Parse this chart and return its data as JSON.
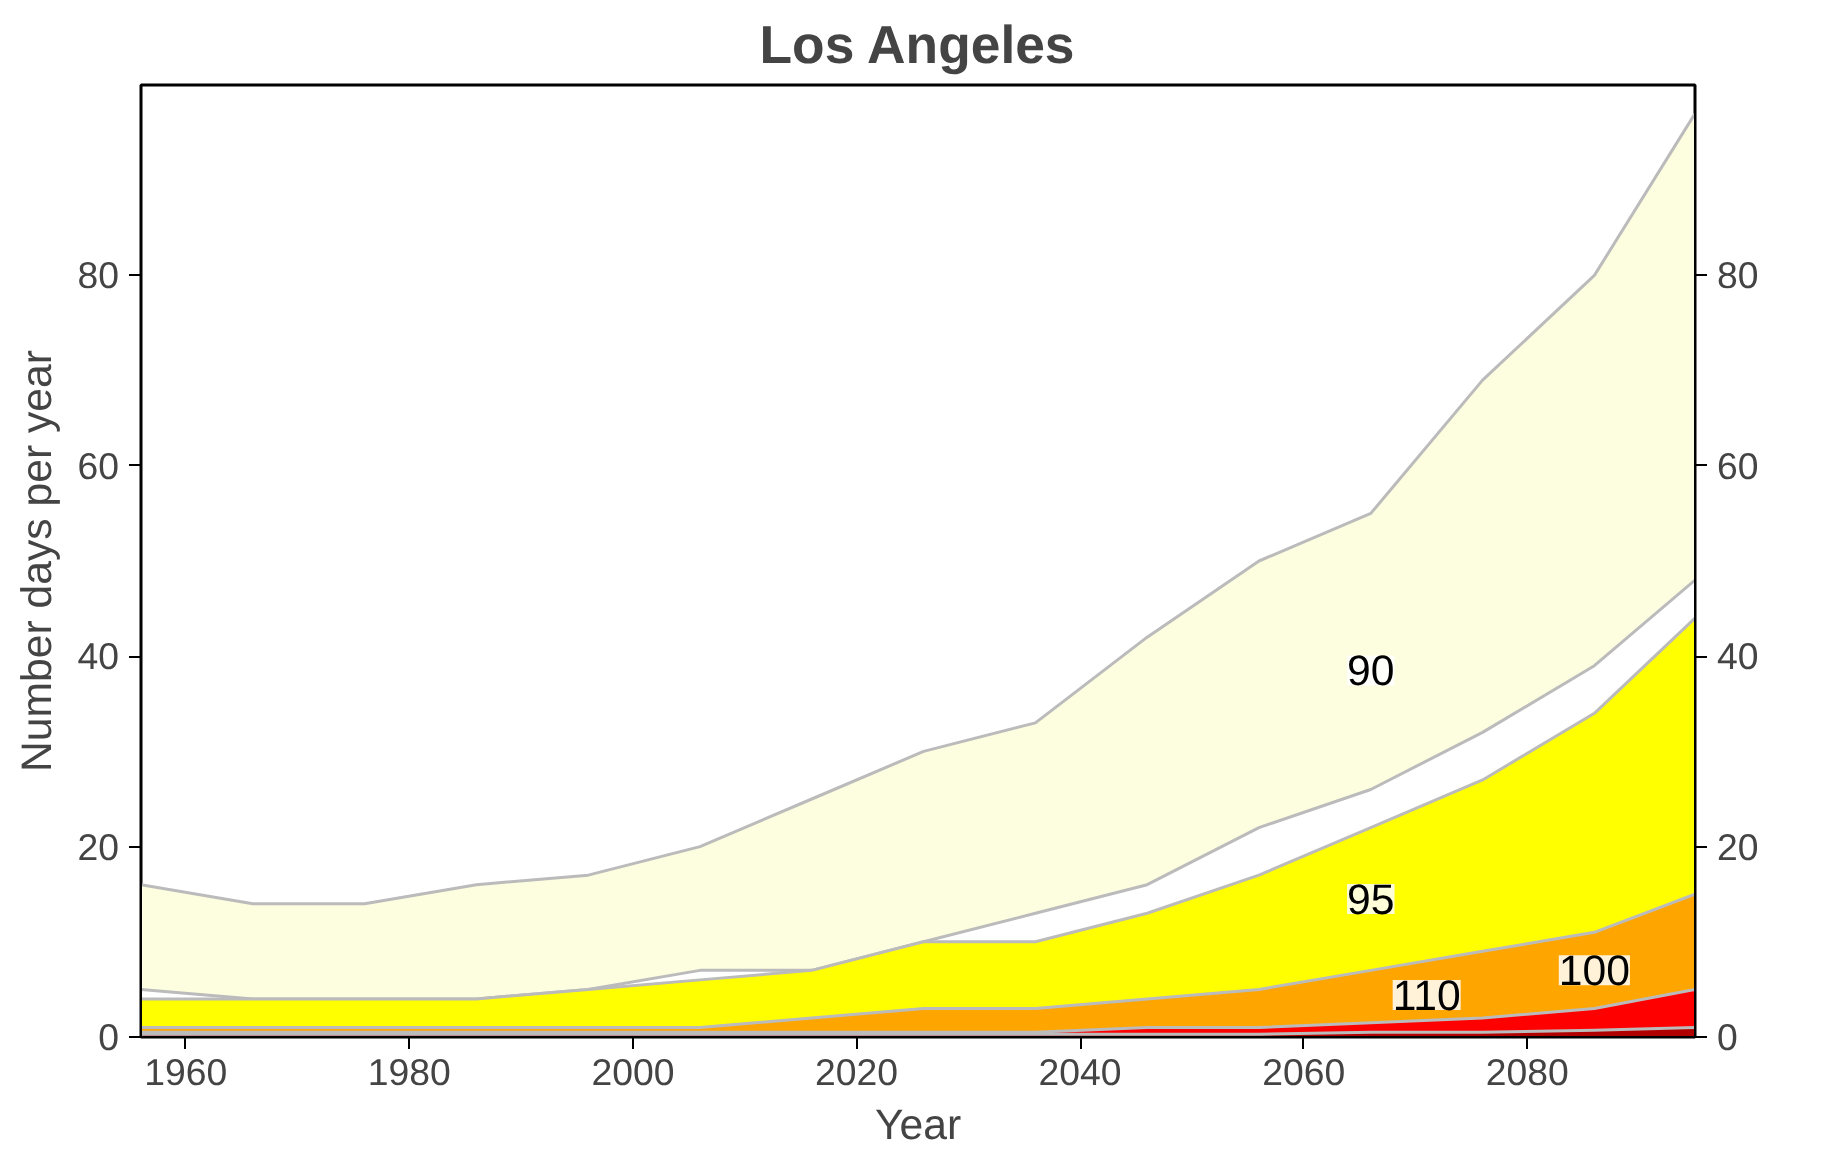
{
  "chart_data": {
    "type": "area",
    "title": "Los Angeles",
    "xlabel": "Year",
    "ylabel": "Number days per year",
    "x": [
      1956,
      1966,
      1976,
      1986,
      1996,
      2006,
      2016,
      2026,
      2036,
      2046,
      2056,
      2066,
      2076,
      2086,
      2095
    ],
    "series": [
      {
        "name": "90",
        "color": "#fdfde0",
        "values": [
          16,
          14,
          14,
          16,
          17,
          20,
          25,
          30,
          33,
          42,
          50,
          55,
          69,
          80,
          97
        ]
      },
      {
        "color": "#ffffff",
        "values": [
          5,
          4,
          4,
          4,
          5,
          7,
          7,
          10,
          13,
          16,
          22,
          26,
          32,
          39,
          48
        ]
      },
      {
        "name": "95",
        "color": "#ffff00",
        "values": [
          4,
          4,
          4,
          4,
          5,
          6,
          7,
          10,
          10,
          13,
          17,
          22,
          27,
          34,
          44
        ]
      },
      {
        "name": "100",
        "color": "#ffa500",
        "values": [
          1,
          1,
          1,
          1,
          1,
          1,
          2,
          3,
          3,
          4,
          5,
          7,
          9,
          11,
          15
        ]
      },
      {
        "name": "110",
        "color": "#ff0000",
        "values": [
          0.5,
          0.5,
          0.5,
          0.5,
          0.5,
          0.5,
          0.5,
          0.5,
          0.5,
          1,
          1,
          1.5,
          2,
          3,
          5
        ]
      },
      {
        "color": "#b00000",
        "values": [
          0.3,
          0.3,
          0.3,
          0.3,
          0.3,
          0.3,
          0.3,
          0.3,
          0.3,
          0.3,
          0.3,
          0.5,
          0.5,
          0.7,
          1
        ]
      }
    ],
    "xlim": [
      1956,
      2095
    ],
    "ylim": [
      0,
      100
    ],
    "y2lim": [
      0,
      100
    ],
    "xticks": [
      1960,
      1980,
      2000,
      2020,
      2040,
      2060,
      2080
    ],
    "yticks": [
      0,
      20,
      40,
      60,
      80
    ],
    "y2ticks": [
      0,
      20,
      40,
      60,
      80
    ],
    "grid": false
  }
}
